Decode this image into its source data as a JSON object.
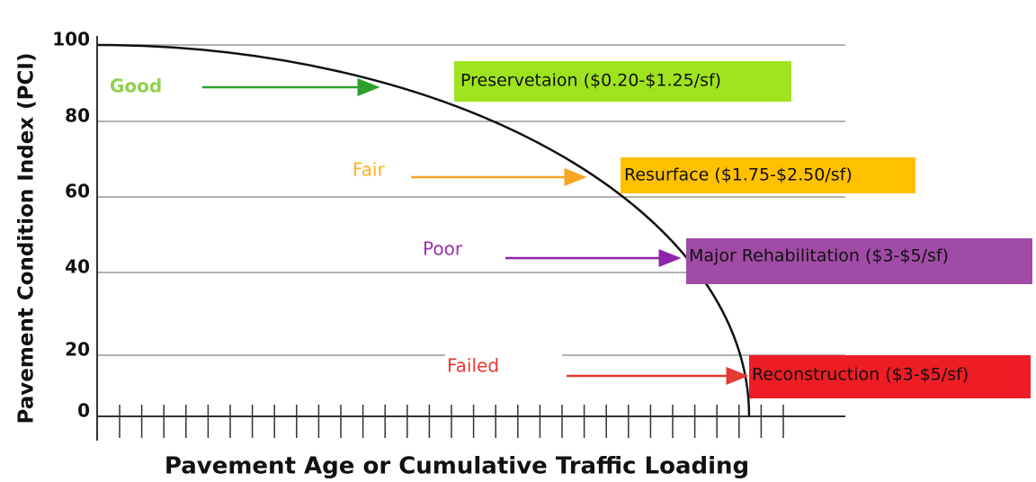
{
  "y_axis": {
    "label": "Pavement Condition Index (PCI)",
    "ticks": [
      "100",
      "80",
      "60",
      "40",
      "20",
      "0"
    ]
  },
  "x_axis": {
    "label": "Pavement Age or Cumulative Traffic Loading"
  },
  "conditions": [
    {
      "name": "Good",
      "treatment": "Preservetaion ($0.20-$1.25/sf)"
    },
    {
      "name": "Fair",
      "treatment": "Resurface ($1.75-$2.50/sf)"
    },
    {
      "name": "Poor",
      "treatment": "Major Rehabilitation ($3-$5/sf)"
    },
    {
      "name": "Failed",
      "treatment": "Reconstruction ($3-$5/sf)"
    }
  ]
}
